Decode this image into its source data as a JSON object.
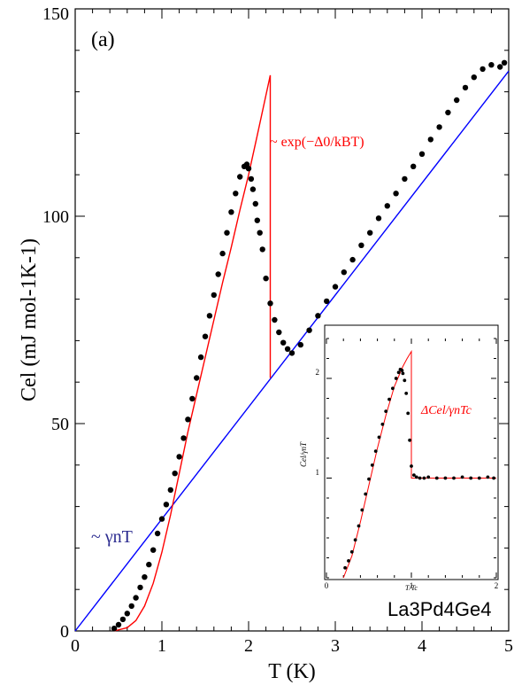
{
  "chart_data": [
    {
      "type": "scatter",
      "panel_label": "(a)",
      "compound": "La3Pd4Ge4",
      "xlabel": "T (K)",
      "ylabel": "Cel (mJ mol-1K-1)",
      "xlim": [
        0,
        5
      ],
      "ylim": [
        0,
        150
      ],
      "x_ticks": [
        "0",
        "1",
        "2",
        "3",
        "4",
        "5"
      ],
      "y_ticks": [
        "0",
        "50",
        "100",
        "150"
      ],
      "series": [
        {
          "kind": "points",
          "color": "#000000",
          "x": [
            0.45,
            0.5,
            0.55,
            0.6,
            0.65,
            0.7,
            0.75,
            0.8,
            0.85,
            0.9,
            0.95,
            1.0,
            1.05,
            1.1,
            1.15,
            1.2,
            1.25,
            1.3,
            1.35,
            1.4,
            1.45,
            1.5,
            1.55,
            1.6,
            1.65,
            1.7,
            1.75,
            1.8,
            1.85,
            1.9,
            1.95,
            1.98,
            2.0,
            2.03,
            2.05,
            2.08,
            2.1,
            2.13,
            2.16,
            2.2,
            2.25,
            2.3,
            2.35,
            2.4,
            2.45,
            2.5,
            2.6,
            2.7,
            2.8,
            2.9,
            3.0,
            3.1,
            3.2,
            3.3,
            3.4,
            3.5,
            3.6,
            3.7,
            3.8,
            3.9,
            4.0,
            4.1,
            4.2,
            4.3,
            4.4,
            4.5,
            4.6,
            4.7,
            4.8,
            4.9,
            4.95
          ],
          "y": [
            0.6,
            1.5,
            2.8,
            4.2,
            6.0,
            8.0,
            10.5,
            13.0,
            16.0,
            19.5,
            23.5,
            27.0,
            30.5,
            34.0,
            38.0,
            42.0,
            46.5,
            51.0,
            56.0,
            61.0,
            66.0,
            71.0,
            76.0,
            81.0,
            86.0,
            91.0,
            96.0,
            101.0,
            105.5,
            109.5,
            112.0,
            112.5,
            111.5,
            109.0,
            106.5,
            103.0,
            99.0,
            96.0,
            92.0,
            85.0,
            79.0,
            75.0,
            72.0,
            69.5,
            68.0,
            67.0,
            69.0,
            72.5,
            76.0,
            79.5,
            83.0,
            86.5,
            89.5,
            93.0,
            96.0,
            99.5,
            102.5,
            105.5,
            109.0,
            112.0,
            115.0,
            118.5,
            121.5,
            125.0,
            128.0,
            131.0,
            133.5,
            135.5,
            136.5,
            136.0,
            137.0
          ]
        },
        {
          "kind": "line",
          "name": "~ γnT",
          "color": "#0000ff",
          "x": [
            0,
            5
          ],
          "y": [
            0,
            135
          ]
        },
        {
          "kind": "line",
          "name": "~ exp(−Δ0/kBT)",
          "color": "#ff0000",
          "x": [
            0.45,
            0.6,
            0.7,
            0.8,
            0.9,
            1.0,
            1.1,
            1.2,
            1.3,
            1.4,
            1.5,
            1.6,
            1.7,
            1.8,
            1.9,
            2.0,
            2.1,
            2.25,
            2.25
          ],
          "y": [
            0,
            0.8,
            2.5,
            6.0,
            11.5,
            19.0,
            28.0,
            38.0,
            48.0,
            57.0,
            66.0,
            75.0,
            84.0,
            92.5,
            101.5,
            110.0,
            119.5,
            134.0,
            61.0
          ]
        }
      ]
    },
    {
      "type": "scatter",
      "role": "inset",
      "xlabel": "T/Tc",
      "ylabel": "Cel/γnT",
      "annotation": "ΔCel/γnTc",
      "xlim": [
        0,
        2
      ],
      "ylim": [
        0,
        2.4
      ],
      "x_ticks": [
        "0",
        "1",
        "2"
      ],
      "y_ticks": [
        "1",
        "2"
      ],
      "series": [
        {
          "kind": "points",
          "color": "#000000",
          "x": [
            0.22,
            0.26,
            0.3,
            0.34,
            0.38,
            0.42,
            0.46,
            0.5,
            0.54,
            0.58,
            0.62,
            0.66,
            0.7,
            0.74,
            0.78,
            0.82,
            0.85,
            0.87,
            0.89,
            0.9,
            0.92,
            0.94,
            0.96,
            0.98,
            1.0,
            1.03,
            1.06,
            1.1,
            1.15,
            1.2,
            1.3,
            1.4,
            1.5,
            1.6,
            1.7,
            1.8,
            1.9,
            1.97
          ],
          "y": [
            0.1,
            0.17,
            0.26,
            0.38,
            0.52,
            0.68,
            0.84,
            0.99,
            1.13,
            1.27,
            1.41,
            1.54,
            1.67,
            1.79,
            1.9,
            2.0,
            2.06,
            2.09,
            2.08,
            2.05,
            1.98,
            1.85,
            1.65,
            1.38,
            1.12,
            1.03,
            1.01,
            1.0,
            1.0,
            1.01,
            1.0,
            1.0,
            1.0,
            1.01,
            1.0,
            1.0,
            1.01,
            1.0
          ]
        },
        {
          "kind": "line",
          "color": "#ff0000",
          "x": [
            0.2,
            0.3,
            0.4,
            0.5,
            0.6,
            0.7,
            0.8,
            0.9,
            0.95,
            1.0,
            1.0,
            2.0
          ],
          "y": [
            0.0,
            0.22,
            0.56,
            0.93,
            1.3,
            1.63,
            1.92,
            2.12,
            2.2,
            2.27,
            1.0,
            1.0
          ]
        }
      ]
    }
  ]
}
